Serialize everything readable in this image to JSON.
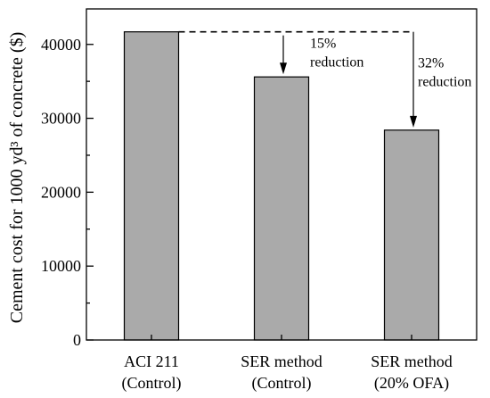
{
  "chart_data": {
    "type": "bar",
    "title": "",
    "xlabel": "",
    "ylabel": "Cement cost for 1000 yd³ of concrete ($)",
    "ylim": [
      0,
      44800
    ],
    "yticks": [
      0,
      10000,
      20000,
      30000,
      40000
    ],
    "categories": [
      [
        "ACI 211",
        "(Control)"
      ],
      [
        "SER method",
        "(Control)"
      ],
      [
        "SER method",
        "(20% OFA)"
      ]
    ],
    "values": [
      41700,
      35600,
      28400
    ],
    "bar_color": "#aaaaaa",
    "grid": false,
    "annotations": [
      {
        "target_index": 1,
        "lines": [
          "15%",
          "reduction"
        ]
      },
      {
        "target_index": 2,
        "lines": [
          "32%",
          "reduction"
        ]
      }
    ]
  }
}
